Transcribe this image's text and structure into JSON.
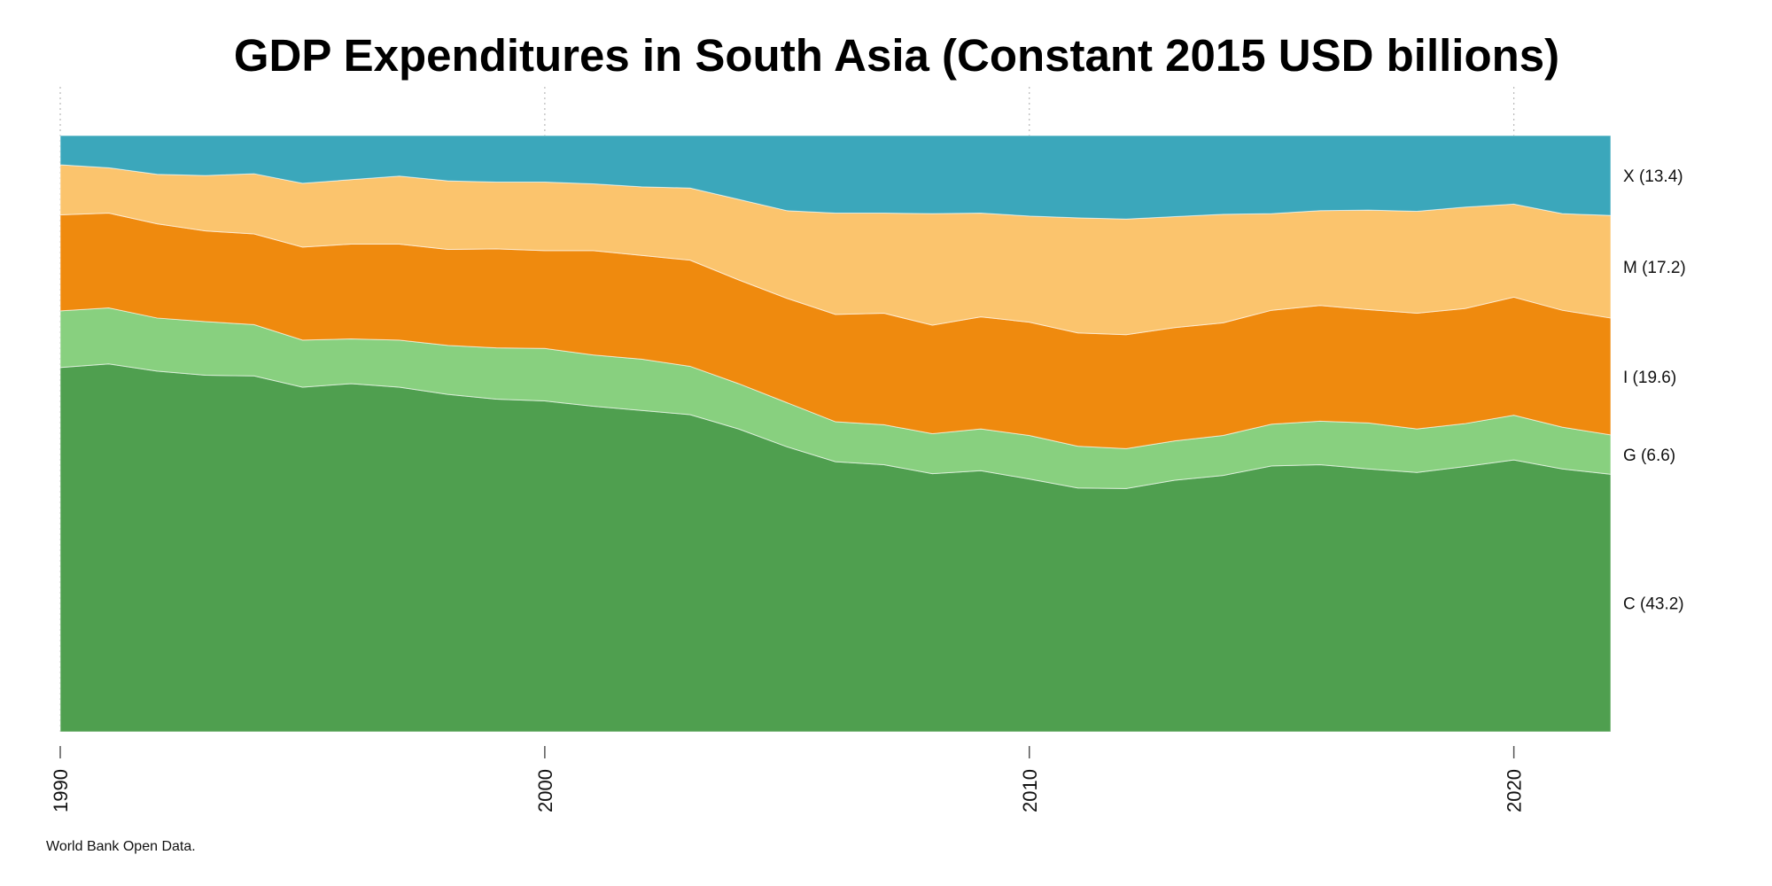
{
  "chart_data": {
    "type": "area",
    "title": "GDP Expenditures in South Asia (Constant 2015 USD billions)",
    "source": "World Bank Open Data.",
    "xlabel": "",
    "ylabel": "",
    "stacking": "percent",
    "ylim": [
      0,
      100
    ],
    "xlim": [
      1990,
      2022
    ],
    "xticks": [
      1990,
      2000,
      2010,
      2020
    ],
    "xtick_labels": [
      "1990",
      "2000",
      "2010",
      "2020"
    ],
    "grid": "vertical dotted lines at x ticks",
    "legend": "right-side labels at end of each band",
    "x": [
      1990,
      1991,
      1992,
      1993,
      1994,
      1995,
      1996,
      1997,
      1998,
      1999,
      2000,
      2001,
      2002,
      2003,
      2004,
      2005,
      2006,
      2007,
      2008,
      2009,
      2010,
      2011,
      2012,
      2013,
      2014,
      2015,
      2016,
      2017,
      2018,
      2019,
      2020,
      2021,
      2022
    ],
    "series": [
      {
        "key": "C",
        "label": "C (43.2)",
        "color": "#4f9f4f",
        "values": [
          61.1,
          61.7,
          60.5,
          59.8,
          59.7,
          57.8,
          58.4,
          57.8,
          56.6,
          55.8,
          55.5,
          54.6,
          53.9,
          53.2,
          50.8,
          47.8,
          45.3,
          44.8,
          43.3,
          43.8,
          42.4,
          40.9,
          40.8,
          42.2,
          43.0,
          44.6,
          44.8,
          44.1,
          43.5,
          44.5,
          45.6,
          44.1,
          43.2
        ]
      },
      {
        "key": "G",
        "label": "G (6.6)",
        "color": "#88d07f",
        "values": [
          9.5,
          9.4,
          8.9,
          9.0,
          8.6,
          7.9,
          7.5,
          7.9,
          8.2,
          8.6,
          8.8,
          8.6,
          8.6,
          8.1,
          7.6,
          7.4,
          6.7,
          6.7,
          6.7,
          7.0,
          7.3,
          7.0,
          6.7,
          6.6,
          6.7,
          7.0,
          7.3,
          7.7,
          7.3,
          7.2,
          7.5,
          7.0,
          6.6
        ]
      },
      {
        "key": "I",
        "label": "I (19.6)",
        "color": "#ef8a0e",
        "values": [
          16.1,
          15.9,
          15.8,
          15.2,
          15.2,
          15.6,
          15.9,
          16.1,
          16.1,
          16.6,
          16.4,
          17.5,
          17.4,
          17.8,
          17.4,
          17.5,
          18.0,
          18.7,
          18.2,
          18.8,
          19.0,
          19.0,
          19.1,
          19.0,
          18.9,
          19.1,
          19.4,
          19.0,
          19.4,
          19.3,
          19.8,
          19.6,
          19.6
        ]
      },
      {
        "key": "M",
        "label": "M (17.2)",
        "color": "#fbc46d",
        "values": [
          8.4,
          7.6,
          8.3,
          9.3,
          10.1,
          10.7,
          10.8,
          11.4,
          11.5,
          11.2,
          11.5,
          11.2,
          11.5,
          12.1,
          13.5,
          14.7,
          17.0,
          16.8,
          18.7,
          17.4,
          17.8,
          19.3,
          19.4,
          18.6,
          18.2,
          16.2,
          15.9,
          16.7,
          17.1,
          17.0,
          15.6,
          16.2,
          17.2
        ]
      },
      {
        "key": "X",
        "label": "X (13.4)",
        "color": "#3ba7bb",
        "values": [
          4.9,
          5.4,
          6.5,
          6.7,
          6.4,
          8.0,
          7.4,
          6.8,
          7.6,
          7.8,
          7.8,
          8.1,
          8.6,
          8.8,
          10.7,
          12.6,
          13.0,
          13.0,
          13.1,
          13.0,
          13.5,
          13.8,
          14.0,
          13.6,
          13.2,
          13.1,
          12.6,
          12.5,
          12.7,
          12.0,
          11.5,
          13.1,
          13.4
        ]
      }
    ]
  }
}
